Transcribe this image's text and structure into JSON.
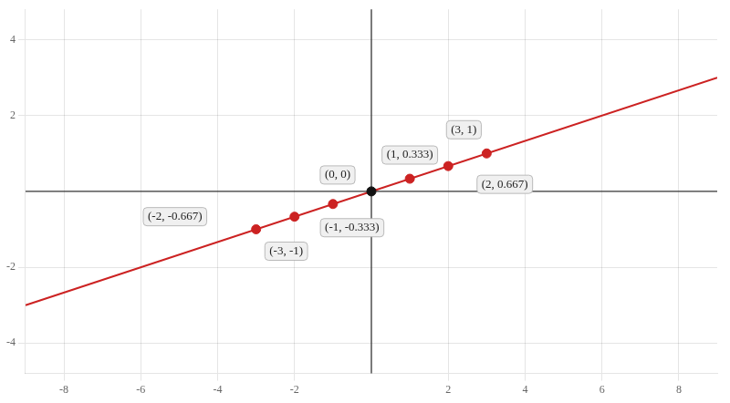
{
  "chart_data": {
    "type": "scatter",
    "xlim": [
      -9,
      9
    ],
    "ylim": [
      -4.8,
      4.8
    ],
    "xticks": [
      -8,
      -6,
      -4,
      -2,
      2,
      4,
      6,
      8
    ],
    "yticks": [
      -4,
      -2,
      2,
      4
    ],
    "grid": true,
    "series": [
      {
        "type": "line",
        "color": "#cc2222",
        "x": [
          -9,
          9
        ],
        "values": [
          -3.0,
          3.0
        ]
      },
      {
        "type": "scatter",
        "colors": [
          "#cc2222",
          "#cc2222",
          "#cc2222",
          "#111111",
          "#cc2222",
          "#cc2222",
          "#cc2222"
        ],
        "x": [
          -3,
          -2,
          -1,
          0,
          1,
          2,
          3
        ],
        "values": [
          -1.0,
          -0.667,
          -0.333,
          0.0,
          0.333,
          0.667,
          1.0
        ]
      }
    ],
    "annotations": [
      {
        "x": -3,
        "y": -1.0,
        "label": "(-3, -1)"
      },
      {
        "x": -2,
        "y": -0.667,
        "label": "(-2, -0.667)"
      },
      {
        "x": -1,
        "y": -0.333,
        "label": "(-1, -0.333)"
      },
      {
        "x": 0,
        "y": 0.0,
        "label": "(0, 0)"
      },
      {
        "x": 1,
        "y": 0.333,
        "label": "(1, 0.333)"
      },
      {
        "x": 2,
        "y": 0.667,
        "label": "(2, 0.667)"
      },
      {
        "x": 3,
        "y": 1.0,
        "label": "(3, 1)"
      }
    ]
  }
}
